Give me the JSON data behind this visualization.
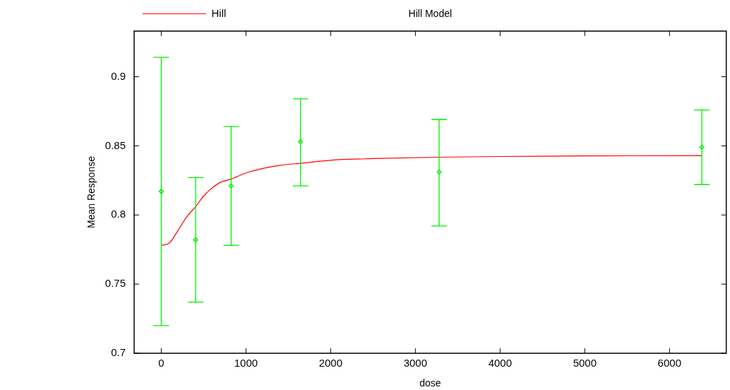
{
  "chart_data": {
    "type": "scatter",
    "title": "Hill Model",
    "xlabel": "dose",
    "ylabel": "Mean Response",
    "xlim": [
      -320,
      6670
    ],
    "ylim": [
      0.7,
      0.933
    ],
    "xticks": [
      0,
      1000,
      2000,
      3000,
      4000,
      5000,
      6000
    ],
    "yticks": [
      {
        "value": 0.7,
        "label": "0.7"
      },
      {
        "value": 0.75,
        "label": "0.75"
      },
      {
        "value": 0.8,
        "label": "0.8"
      },
      {
        "value": 0.85,
        "label": "0.85"
      },
      {
        "value": 0.9,
        "label": "0.9"
      }
    ],
    "grid": false,
    "legend": "top left",
    "marker": "diamond",
    "series": [
      {
        "type": "scatter",
        "color": "#00ee00",
        "x": [
          0,
          406,
          825,
          1644,
          3280,
          6382
        ],
        "values": [
          0.817,
          0.782,
          0.821,
          0.853,
          0.831,
          0.849
        ],
        "errors": [
          [
            0.72,
            0.914
          ],
          [
            0.737,
            0.827
          ],
          [
            0.778,
            0.864
          ],
          [
            0.821,
            0.884
          ],
          [
            0.792,
            0.869
          ],
          [
            0.822,
            0.876
          ]
        ]
      },
      {
        "type": "line",
        "name": "Hill",
        "color": "#ff0000",
        "marker": "none",
        "x": [
          0,
          100,
          200,
          300,
          406,
          500,
          600,
          700,
          825,
          1000,
          1200,
          1400,
          1644,
          2000,
          2500,
          3280,
          4000,
          5000,
          6382
        ],
        "values": [
          0.778,
          0.78,
          0.789,
          0.7986,
          0.806,
          0.8137,
          0.8195,
          0.8237,
          0.826,
          0.8304,
          0.8337,
          0.8359,
          0.8374,
          0.8396,
          0.8408,
          0.8418,
          0.8423,
          0.8427,
          0.8429
        ]
      }
    ]
  }
}
